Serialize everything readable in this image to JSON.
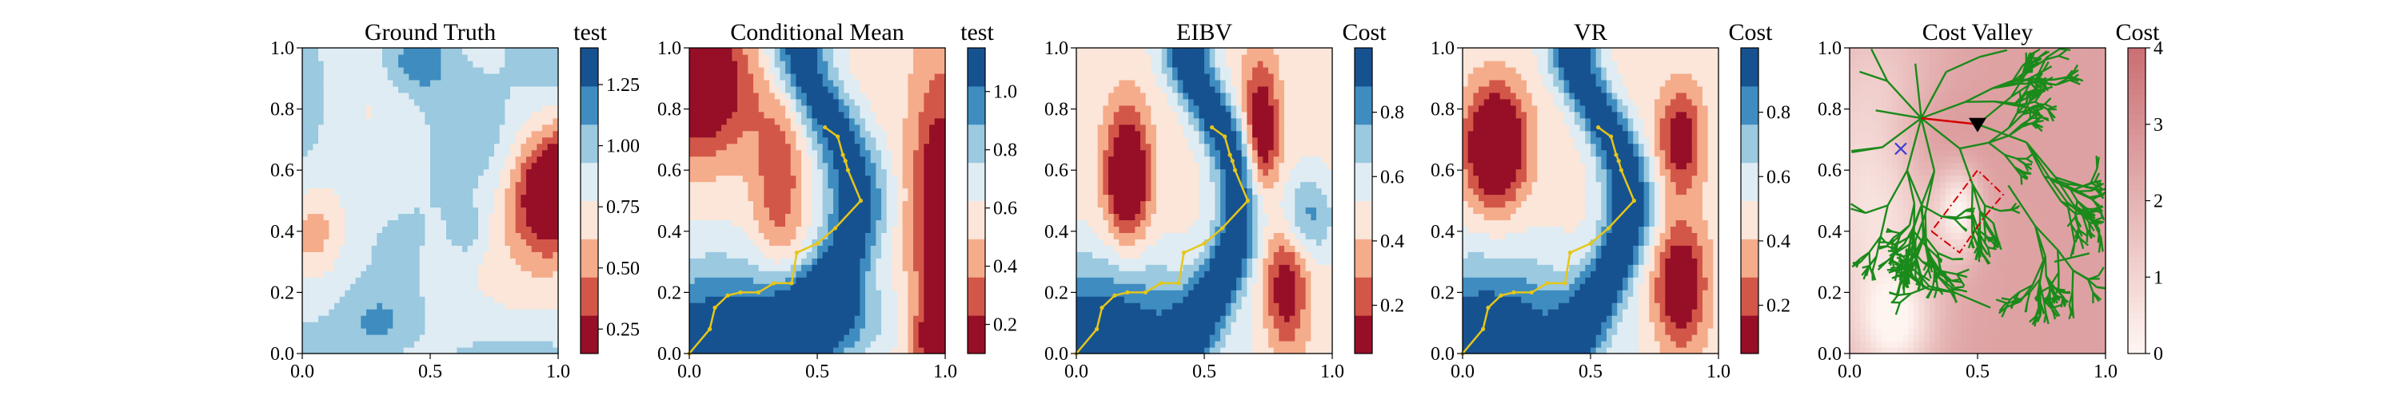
{
  "figure": {
    "background": "#ffffff",
    "path_color": "#e6c619",
    "tree_color": "#1a8a1a",
    "panels": [
      {
        "title": "Ground Truth",
        "cbar_label": "test",
        "field": "ground_truth",
        "cmap": "RdBu",
        "xticks": [
          "0.0",
          "0.5",
          "1.0"
        ],
        "yticks": [
          "0.0",
          "0.2",
          "0.4",
          "0.6",
          "0.8",
          "1.0"
        ],
        "cbar_ticks": [
          {
            "v": 0.25,
            "t": "0.25"
          },
          {
            "v": 0.5,
            "t": "0.50"
          },
          {
            "v": 0.75,
            "t": "0.75"
          },
          {
            "v": 1.0,
            "t": "1.00"
          },
          {
            "v": 1.25,
            "t": "1.25"
          }
        ],
        "cbar_range": [
          0.15,
          1.4
        ],
        "levels": 8,
        "path": false
      },
      {
        "title": "Conditional Mean",
        "cbar_label": "test",
        "field": "cond_mean",
        "cmap": "RdBu",
        "xticks": [
          "0.0",
          "0.5",
          "1.0"
        ],
        "yticks": [
          "0.0",
          "0.2",
          "0.4",
          "0.6",
          "0.8",
          "1.0"
        ],
        "cbar_ticks": [
          {
            "v": 0.2,
            "t": "0.2"
          },
          {
            "v": 0.4,
            "t": "0.4"
          },
          {
            "v": 0.6,
            "t": "0.6"
          },
          {
            "v": 0.8,
            "t": "0.8"
          },
          {
            "v": 1.0,
            "t": "1.0"
          }
        ],
        "cbar_range": [
          0.1,
          1.15
        ],
        "levels": 8,
        "path": true
      },
      {
        "title": "EIBV",
        "cbar_label": "Cost",
        "field": "eibv",
        "cmap": "RdBu",
        "xticks": [
          "0.0",
          "0.5",
          "1.0"
        ],
        "yticks": [
          "0.0",
          "0.2",
          "0.4",
          "0.6",
          "0.8",
          "1.0"
        ],
        "cbar_ticks": [
          {
            "v": 0.2,
            "t": "0.2"
          },
          {
            "v": 0.4,
            "t": "0.4"
          },
          {
            "v": 0.6,
            "t": "0.6"
          },
          {
            "v": 0.8,
            "t": "0.8"
          }
        ],
        "cbar_range": [
          0.05,
          1.0
        ],
        "levels": 8,
        "path": true
      },
      {
        "title": "VR",
        "cbar_label": "Cost",
        "field": "vr",
        "cmap": "RdBu",
        "xticks": [
          "0.0",
          "0.5",
          "1.0"
        ],
        "yticks": [
          "0.0",
          "0.2",
          "0.4",
          "0.6",
          "0.8",
          "1.0"
        ],
        "cbar_ticks": [
          {
            "v": 0.2,
            "t": "0.2"
          },
          {
            "v": 0.4,
            "t": "0.4"
          },
          {
            "v": 0.6,
            "t": "0.6"
          },
          {
            "v": 0.8,
            "t": "0.8"
          }
        ],
        "cbar_range": [
          0.05,
          1.0
        ],
        "levels": 8,
        "path": true
      },
      {
        "title": "Cost Valley",
        "cbar_label": "Cost",
        "field": "cost_valley",
        "cmap": "Reds",
        "xticks": [
          "0.0",
          "0.5",
          "1.0"
        ],
        "yticks": [
          "0.0",
          "0.2",
          "0.4",
          "0.6",
          "0.8",
          "1.0"
        ],
        "cbar_ticks": [
          {
            "v": 0,
            "t": "0"
          },
          {
            "v": 1,
            "t": "1"
          },
          {
            "v": 2,
            "t": "2"
          },
          {
            "v": 3,
            "t": "3"
          },
          {
            "v": 4,
            "t": "4"
          }
        ],
        "cbar_range": [
          0,
          4
        ],
        "levels": 0,
        "path": false
      }
    ]
  },
  "chart_data": [
    {
      "type": "heatmap",
      "title": "Ground Truth",
      "colorbar_label": "test",
      "xlim": [
        0,
        1
      ],
      "ylim": [
        0,
        1
      ],
      "colorbar_ticks": [
        "0.25",
        "0.50",
        "0.75",
        "1.00",
        "1.25"
      ]
    },
    {
      "type": "heatmap",
      "title": "Conditional Mean",
      "colorbar_label": "test",
      "xlim": [
        0,
        1
      ],
      "ylim": [
        0,
        1
      ],
      "colorbar_ticks": [
        "0.2",
        "0.4",
        "0.6",
        "0.8",
        "1.0"
      ],
      "path": {
        "x": [
          0.0,
          0.08,
          0.1,
          0.15,
          0.2,
          0.27,
          0.33,
          0.4,
          0.42,
          0.5,
          0.57,
          0.67,
          0.62,
          0.61,
          0.6,
          0.58,
          0.53
        ],
        "y": [
          0.0,
          0.08,
          0.15,
          0.19,
          0.2,
          0.2,
          0.23,
          0.23,
          0.33,
          0.36,
          0.41,
          0.5,
          0.6,
          0.63,
          0.65,
          0.71,
          0.74
        ]
      }
    },
    {
      "type": "heatmap",
      "title": "EIBV",
      "colorbar_label": "Cost",
      "xlim": [
        0,
        1
      ],
      "ylim": [
        0,
        1
      ],
      "colorbar_ticks": [
        "0.2",
        "0.4",
        "0.6",
        "0.8"
      ],
      "path": {
        "x": [
          0.0,
          0.08,
          0.1,
          0.15,
          0.2,
          0.27,
          0.33,
          0.4,
          0.42,
          0.5,
          0.57,
          0.67,
          0.62,
          0.61,
          0.6,
          0.58,
          0.53
        ],
        "y": [
          0.0,
          0.08,
          0.15,
          0.19,
          0.2,
          0.2,
          0.23,
          0.23,
          0.33,
          0.36,
          0.41,
          0.5,
          0.6,
          0.63,
          0.65,
          0.71,
          0.74
        ]
      }
    },
    {
      "type": "heatmap",
      "title": "VR",
      "colorbar_label": "Cost",
      "xlim": [
        0,
        1
      ],
      "ylim": [
        0,
        1
      ],
      "colorbar_ticks": [
        "0.2",
        "0.4",
        "0.6",
        "0.8"
      ],
      "path": {
        "x": [
          0.0,
          0.08,
          0.1,
          0.15,
          0.2,
          0.27,
          0.33,
          0.4,
          0.42,
          0.5,
          0.57,
          0.67,
          0.62,
          0.61,
          0.6,
          0.58,
          0.53
        ],
        "y": [
          0.0,
          0.08,
          0.15,
          0.19,
          0.2,
          0.2,
          0.23,
          0.23,
          0.33,
          0.36,
          0.41,
          0.5,
          0.6,
          0.63,
          0.65,
          0.71,
          0.74
        ]
      }
    },
    {
      "type": "heatmap",
      "title": "Cost Valley",
      "colorbar_label": "Cost",
      "xlim": [
        0,
        1
      ],
      "ylim": [
        0,
        1
      ],
      "colorbar_ticks": [
        "0",
        "1",
        "2",
        "3",
        "4"
      ],
      "markers": {
        "current_location": {
          "x": 0.5,
          "y": 0.75,
          "symbol": "black triangle"
        },
        "previous_location": {
          "x": 0.2,
          "y": 0.67,
          "symbol": "blue x"
        }
      },
      "red_segment": {
        "x": [
          0.28,
          0.5
        ],
        "y": [
          0.77,
          0.75
        ]
      },
      "dash_dot_region": {
        "x": [
          0.32,
          0.43,
          0.52,
          0.6,
          0.5,
          0.32
        ],
        "y": [
          0.4,
          0.33,
          0.44,
          0.52,
          0.6,
          0.4
        ]
      },
      "rrt_tree": "green random tree branches spanning the domain"
    }
  ]
}
